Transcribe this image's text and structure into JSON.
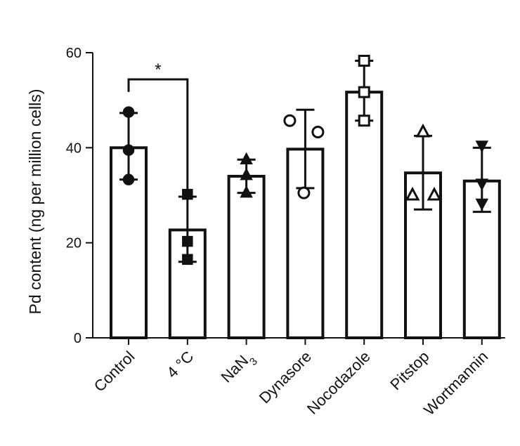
{
  "chart_data": {
    "type": "bar",
    "title": "",
    "xlabel": "",
    "ylabel": "Pd content (ng per million cells)",
    "ylim": [
      0,
      60
    ],
    "yticks": [
      0,
      20,
      40,
      60
    ],
    "grid": false,
    "categories": [
      {
        "label": "Control",
        "sub": ""
      },
      {
        "label": "4 °C",
        "sub": ""
      },
      {
        "label": "NaN",
        "sub": "3"
      },
      {
        "label": "Dynasore",
        "sub": ""
      },
      {
        "label": "Nocodazole",
        "sub": ""
      },
      {
        "label": "Pitstop",
        "sub": ""
      },
      {
        "label": "Wortmannin",
        "sub": ""
      }
    ],
    "values": [
      40,
      22.7,
      34,
      39.7,
      51.7,
      34.7,
      33
    ],
    "error_high": [
      47.3,
      29.7,
      37.5,
      48,
      58.3,
      42.5,
      40
    ],
    "error_low": [
      33.3,
      16,
      30.5,
      31.5,
      45.7,
      27,
      26.5
    ],
    "points": [
      [
        47.5,
        39.5,
        33.3
      ],
      [
        30.2,
        20.3,
        16.5
      ],
      [
        37.5,
        34.2,
        30.5
      ],
      [
        45.7,
        43.3,
        30.5
      ],
      [
        58.3,
        51.7,
        45.7
      ],
      [
        43.3,
        30,
        30
      ],
      [
        40.5,
        32.5,
        28.3
      ]
    ],
    "markers": [
      "circle-filled",
      "square-filled",
      "triangle-up-filled",
      "circle-open",
      "square-open",
      "triangle-up-open",
      "triangle-down-filled"
    ],
    "significance": [
      {
        "from": 0,
        "to": 1,
        "label": "*"
      }
    ]
  }
}
